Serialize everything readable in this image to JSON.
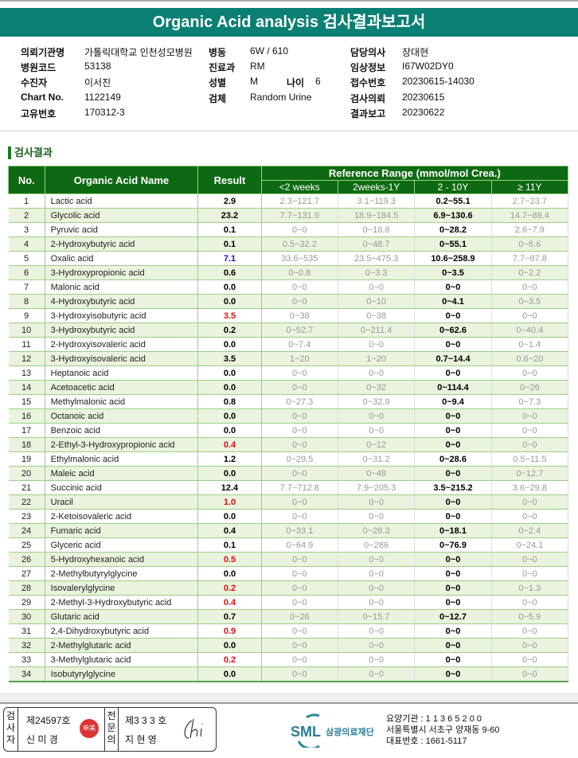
{
  "title": "Organic Acid analysis 검사결과보고서",
  "info": [
    {
      "k": "의뢰기관명",
      "v": "가톨릭대학교 인천성모병원"
    },
    {
      "k": "병원코드",
      "v": "53138"
    },
    {
      "k": "수진자",
      "v": "이서진"
    },
    {
      "k": "Chart No.",
      "v": "1122149"
    },
    {
      "k": "고유번호",
      "v": "170312-3"
    },
    {
      "k": "병동",
      "v": "6W / 610"
    },
    {
      "k": "진료과",
      "v": "RM"
    },
    {
      "k": "성별",
      "v": "M"
    },
    {
      "k": "나이",
      "v": "6"
    },
    {
      "k": "검체",
      "v": "Random Urine"
    },
    {
      "k": "담당의사",
      "v": "장대현"
    },
    {
      "k": "임상정보",
      "v": "I67W02DY0"
    },
    {
      "k": "접수번호",
      "v": "20230615-14030"
    },
    {
      "k": "검사의뢰",
      "v": "20230615"
    },
    {
      "k": "결과보고",
      "v": "20230622"
    }
  ],
  "section_title": "검사결과",
  "table": {
    "headers": {
      "no": "No.",
      "name": "Organic Acid Name",
      "result": "Result",
      "ref": "Reference Range (mmol/mol Crea.)",
      "sub": [
        "<2 weeks",
        "2weeks-1Y",
        "2 - 10Y",
        "≥ 11Y"
      ]
    },
    "colors": {
      "normal": "#000000",
      "high": "#e01010",
      "low": "#1010d0"
    },
    "rows": [
      [
        "1",
        "Lactic acid",
        "2.9",
        "normal",
        "2.3~121.7",
        "3.1~119.3",
        "0.2~55.1",
        "2.7~23.7"
      ],
      [
        "2",
        "Glycolic acid",
        "23.2",
        "normal",
        "7.7~131.9",
        "18.9~184.5",
        "6.9~130.6",
        "14.7~89.4"
      ],
      [
        "3",
        "Pyruvic acid",
        "0.1",
        "normal",
        "0~0",
        "0~16.8",
        "0~28.2",
        "2.6~7.9"
      ],
      [
        "4",
        "2-Hydroxybutyric acid",
        "0.1",
        "normal",
        "0.5~32.2",
        "0~48.7",
        "0~55.1",
        "0~6.6"
      ],
      [
        "5",
        "Oxalic acid",
        "7.1",
        "low",
        "33.6~535",
        "23.5~475.3",
        "10.6~258.9",
        "7.7~87.8"
      ],
      [
        "6",
        "3-Hydroxypropionic acid",
        "0.6",
        "normal",
        "0~0.8",
        "0~3.3",
        "0~3.5",
        "0~2.2"
      ],
      [
        "7",
        "Malonic acid",
        "0.0",
        "normal",
        "0~0",
        "0~0",
        "0~0",
        "0~0"
      ],
      [
        "8",
        "4-Hydroxybutyric acid",
        "0.0",
        "normal",
        "0~0",
        "0~10",
        "0~4.1",
        "0~3.5"
      ],
      [
        "9",
        "3-Hydroxyisobutyric acid",
        "3.5",
        "high",
        "0~38",
        "0~38",
        "0~0",
        "0~0"
      ],
      [
        "10",
        "3-Hydroxybutyric acid",
        "0.2",
        "normal",
        "0~52.7",
        "0~211.4",
        "0~62.6",
        "0~40.4"
      ],
      [
        "11",
        "2-Hydroxyisovaleric acid",
        "0.0",
        "normal",
        "0~7.4",
        "0~0",
        "0~0",
        "0~1.4"
      ],
      [
        "12",
        "3-Hydroxyisovaleric acid",
        "3.5",
        "normal",
        "1~20",
        "1~20",
        "0.7~14.4",
        "0.6~20"
      ],
      [
        "13",
        "Heptanoic acid",
        "0.0",
        "normal",
        "0~0",
        "0~0",
        "0~0",
        "0~0"
      ],
      [
        "14",
        "Acetoacetic acid",
        "0.0",
        "normal",
        "0~0",
        "0~32",
        "0~114.4",
        "0~26"
      ],
      [
        "15",
        "Methylmalonic acid",
        "0.8",
        "normal",
        "0~27.3",
        "0~32.9",
        "0~9.4",
        "0~7.3"
      ],
      [
        "16",
        "Octanoic acid",
        "0.0",
        "normal",
        "0~0",
        "0~0",
        "0~0",
        "0~0"
      ],
      [
        "17",
        "Benzoic acid",
        "0.0",
        "normal",
        "0~0",
        "0~0",
        "0~0",
        "0~0"
      ],
      [
        "18",
        "2-Ethyl-3-Hydroxypropionic acid",
        "0.4",
        "high",
        "0~0",
        "0~12",
        "0~0",
        "0~0"
      ],
      [
        "19",
        "Ethylmalonic acid",
        "1.2",
        "normal",
        "0~29.5",
        "0~31.2",
        "0~28.6",
        "0.5~11.5"
      ],
      [
        "20",
        "Maleic acid",
        "0.0",
        "normal",
        "0~0",
        "0~48",
        "0~0",
        "0~12.7"
      ],
      [
        "21",
        "Succinic acid",
        "12.4",
        "normal",
        "7.7~712.8",
        "7.9~205.3",
        "3.5~215.2",
        "3.6~29.8"
      ],
      [
        "22",
        "Uracil",
        "1.0",
        "high",
        "0~0",
        "0~0",
        "0~0",
        "0~0"
      ],
      [
        "23",
        "2-Ketoisovaleric acid",
        "0.0",
        "normal",
        "0~0",
        "0~0",
        "0~0",
        "0~0"
      ],
      [
        "24",
        "Fumaric acid",
        "0.4",
        "normal",
        "0~33.1",
        "0~28.3",
        "0~18.1",
        "0~2.4"
      ],
      [
        "25",
        "Glyceric acid",
        "0.1",
        "normal",
        "0~64.9",
        "0~286",
        "0~76.9",
        "0~24.1"
      ],
      [
        "26",
        "5-Hydroxyhexanoic acid",
        "0.5",
        "high",
        "0~0",
        "0~0",
        "0~0",
        "0~0"
      ],
      [
        "27",
        "2-Methylbutyrylglycine",
        "0.0",
        "normal",
        "0~0",
        "0~0",
        "0~0",
        "0~0"
      ],
      [
        "28",
        "Isovalerylglycine",
        "0.2",
        "high",
        "0~0",
        "0~0",
        "0~0",
        "0~1.3"
      ],
      [
        "29",
        "2-Methyl-3-Hydroxybutyric acid",
        "0.4",
        "high",
        "0~0",
        "0~0",
        "0~0",
        "0~0"
      ],
      [
        "30",
        "Glutaric acid",
        "0.7",
        "normal",
        "0~26",
        "0~15.7",
        "0~12.7",
        "0~5.9"
      ],
      [
        "31",
        "2,4-Dihydroxybutyric acid",
        "0.9",
        "high",
        "0~0",
        "0~0",
        "0~0",
        "0~0"
      ],
      [
        "32",
        "2-Methylglutaric acid",
        "0.0",
        "normal",
        "0~0",
        "0~0",
        "0~0",
        "0~0"
      ],
      [
        "33",
        "3-Methylglutaric acid",
        "0.2",
        "high",
        "0~0",
        "0~0",
        "0~0",
        "0~0"
      ],
      [
        "34",
        "Isobutyrylglycine",
        "0.0",
        "normal",
        "0~0",
        "0~0",
        "0~0",
        "0~0"
      ]
    ]
  },
  "footer": {
    "examiner_label": "검사자",
    "examiner_no": "제24597호",
    "examiner_name": "신 미 경",
    "examiner_seal": "申美",
    "specialist_label": "전문의",
    "specialist_no": "제3 3 3 호",
    "specialist_name": "지 현 영",
    "signature": "Chi",
    "logo": "SML",
    "org": "삼광의료재단",
    "line1": "요양기관 : 1 1 3 6 5 2 0 0",
    "line2": "서울특별시 서초구 양재동 9-60",
    "line3": "대표번호 : 1661-5117"
  }
}
